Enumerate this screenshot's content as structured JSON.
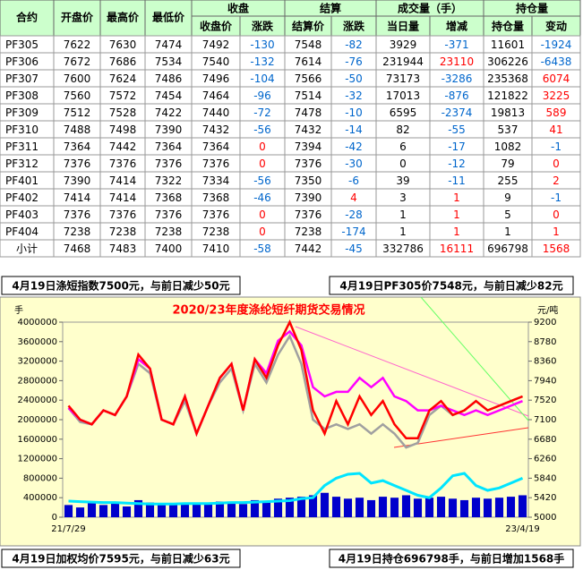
{
  "table": {
    "group_headers": [
      "收盘",
      "结算",
      "成交量（手）",
      "持仓量"
    ],
    "columns": [
      "合约",
      "开盘价",
      "最高价",
      "最低价",
      "收盘价",
      "涨跌",
      "结算价",
      "涨跌",
      "当日量",
      "增减",
      "持仓量",
      "变动"
    ],
    "rows": [
      [
        "PF305",
        7622,
        7630,
        7474,
        7492,
        -130,
        7548,
        -82,
        3929,
        -371,
        11601,
        -1924
      ],
      [
        "PF306",
        7672,
        7686,
        7534,
        7540,
        -132,
        7614,
        -76,
        231944,
        23110,
        306226,
        -6438
      ],
      [
        "PF307",
        7600,
        7624,
        7486,
        7496,
        -104,
        7566,
        -50,
        73173,
        -3286,
        235368,
        6074
      ],
      [
        "PF308",
        7560,
        7572,
        7454,
        7464,
        -96,
        7514,
        -32,
        17013,
        -876,
        121822,
        3225
      ],
      [
        "PF309",
        7512,
        7528,
        7422,
        7440,
        -72,
        7478,
        -10,
        6595,
        -2374,
        19813,
        589
      ],
      [
        "PF310",
        7488,
        7498,
        7390,
        7432,
        -56,
        7432,
        -14,
        82,
        -55,
        537,
        41
      ],
      [
        "PF311",
        7364,
        7442,
        7364,
        7364,
        0,
        7394,
        -42,
        6,
        -17,
        1082,
        -1
      ],
      [
        "PF312",
        7376,
        7376,
        7376,
        7376,
        0,
        7376,
        -30,
        0,
        -12,
        79,
        0
      ],
      [
        "PF401",
        7390,
        7414,
        7322,
        7334,
        -56,
        7350,
        -6,
        39,
        -11,
        255,
        2
      ],
      [
        "PF402",
        7414,
        7414,
        7368,
        7368,
        -46,
        7390,
        4,
        3,
        1,
        9,
        -1
      ],
      [
        "PF403",
        7376,
        7376,
        7376,
        7376,
        0,
        7376,
        -28,
        1,
        1,
        5,
        0
      ],
      [
        "PF404",
        7238,
        7238,
        7238,
        7238,
        0,
        7238,
        -174,
        1,
        1,
        1,
        1
      ],
      [
        "小计",
        7468,
        7483,
        7400,
        7410,
        -58,
        7442,
        -45,
        332786,
        16111,
        696798,
        1568
      ]
    ]
  },
  "notes": [
    "4月19日涤短指数7500元，与前日减少50元",
    "4月19日PF305价7548元，与前日减少82元",
    "4月19日加权均价7595元，与前日减少63元",
    "4月19日持仓696798手，与前日增加1568手"
  ],
  "chart_data": {
    "type": "combo",
    "title": "2020/23年度涤纶短纤期货交易情况",
    "y_label": "手",
    "y2_label": "元/吨",
    "categories": [
      "21/7/29",
      null,
      null,
      null,
      null,
      null,
      null,
      null,
      null,
      null,
      null,
      null,
      null,
      null,
      null,
      null,
      null,
      null,
      null,
      null,
      null,
      null,
      null,
      null,
      null,
      null,
      null,
      null,
      null,
      null,
      null,
      null,
      null,
      null,
      null,
      null,
      null,
      null,
      null,
      "23/4/19"
    ],
    "ylim": [
      0,
      4000000
    ],
    "yticks": [
      0,
      400000,
      800000,
      1200000,
      1600000,
      2000000,
      2400000,
      2800000,
      3200000,
      3600000,
      4000000
    ],
    "y2lim": [
      5000,
      9200
    ],
    "y2ticks": [
      5000,
      5420,
      5840,
      6260,
      6680,
      7100,
      7520,
      7940,
      8360,
      8780,
      9200
    ],
    "grid": false,
    "series": [
      {
        "type": "bar",
        "color": "#0000cc",
        "values": [
          250000,
          200000,
          300000,
          250000,
          280000,
          220000,
          350000,
          300000,
          280000,
          250000,
          300000,
          260000,
          280000,
          320000,
          300000,
          270000,
          350000,
          300000,
          380000,
          400000,
          420000,
          450000,
          500000,
          420000,
          380000,
          400000,
          350000,
          420000,
          400000,
          450000,
          380000,
          400000,
          420000,
          380000,
          350000,
          400000,
          380000,
          400000,
          420000,
          450000
        ]
      },
      {
        "type": "line",
        "color": "#00e5ff",
        "values": [
          330000,
          320000,
          310000,
          300000,
          300000,
          290000,
          280000,
          270000,
          270000,
          270000,
          280000,
          280000,
          280000,
          290000,
          300000,
          300000,
          310000,
          320000,
          330000,
          340000,
          380000,
          400000,
          650000,
          800000,
          880000,
          900000,
          700000,
          750000,
          650000,
          550000,
          450000,
          400000,
          600000,
          850000,
          900000,
          650000,
          550000,
          600000,
          700000,
          800000
        ]
      },
      {
        "type": "line",
        "axis": "y2",
        "color": "#a0a0a0",
        "values": [
          7350,
          7050,
          7000,
          7300,
          7200,
          7600,
          8300,
          8100,
          7100,
          7000,
          7500,
          6800,
          7400,
          7900,
          8200,
          7300,
          8300,
          7900,
          8500,
          8900,
          8300,
          7100,
          6900,
          7000,
          6900,
          7000,
          6800,
          7000,
          6800,
          6500,
          6600,
          7200,
          7400,
          7200,
          7300,
          7500,
          7300,
          7400,
          7500,
          7600
        ]
      },
      {
        "type": "line",
        "axis": "y2",
        "color": "#ff00ff",
        "values": [
          7350,
          7100,
          7000,
          7300,
          7200,
          7600,
          8400,
          8200,
          7100,
          7000,
          7600,
          6800,
          7400,
          8000,
          8300,
          7300,
          8400,
          8100,
          8800,
          9000,
          8700,
          7800,
          7600,
          7700,
          7700,
          8000,
          7800,
          8000,
          7600,
          7500,
          7300,
          7300,
          7400,
          7300,
          7200,
          7300,
          7200,
          7300,
          7400,
          7500
        ]
      },
      {
        "type": "line",
        "axis": "y2",
        "color": "#ff0000",
        "values": [
          7400,
          7100,
          7000,
          7300,
          7200,
          7600,
          8500,
          8200,
          7100,
          7000,
          7600,
          6800,
          7400,
          8000,
          8300,
          7300,
          8400,
          8000,
          8700,
          9200,
          8600,
          7300,
          6800,
          7500,
          7000,
          7600,
          7200,
          7500,
          7000,
          6700,
          6700,
          7300,
          7500,
          7200,
          7300,
          7500,
          7300,
          7400,
          7500,
          7600
        ]
      }
    ]
  }
}
